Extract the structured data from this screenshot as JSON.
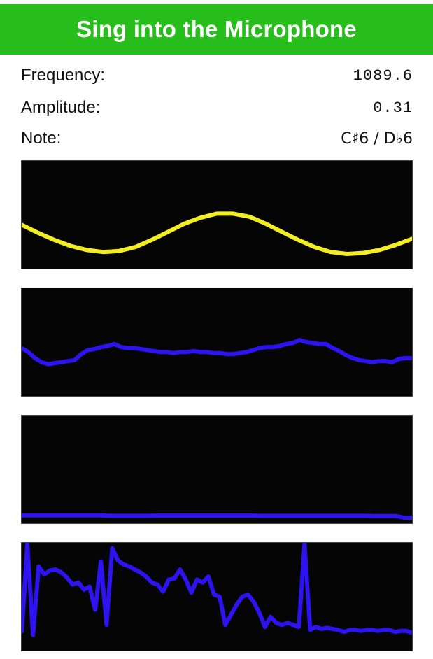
{
  "header": {
    "title": "Sing into the Microphone",
    "color": "#27bd1a"
  },
  "readouts": {
    "frequency_label": "Frequency:",
    "frequency_value": "1089.6",
    "amplitude_label": "Amplitude:",
    "amplitude_value": "0.31",
    "note_label": "Note:",
    "note_value": "C♯6 / D♭6"
  },
  "plots": [
    {
      "name": "waveform-plot",
      "color": "#f2ee22",
      "points": [
        0.38,
        0.3,
        0.23,
        0.17,
        0.13,
        0.11,
        0.12,
        0.16,
        0.23,
        0.31,
        0.39,
        0.45,
        0.49,
        0.49,
        0.46,
        0.39,
        0.31,
        0.23,
        0.16,
        0.11,
        0.09,
        0.1,
        0.13,
        0.18,
        0.24
      ]
    },
    {
      "name": "spectrum-plot-1",
      "color": "#2c13f0",
      "points": [
        0.42,
        0.38,
        0.32,
        0.28,
        0.26,
        0.27,
        0.28,
        0.29,
        0.3,
        0.36,
        0.4,
        0.41,
        0.43,
        0.44,
        0.46,
        0.43,
        0.42,
        0.42,
        0.41,
        0.4,
        0.39,
        0.38,
        0.38,
        0.37,
        0.38,
        0.38,
        0.39,
        0.38,
        0.38,
        0.37,
        0.37,
        0.36,
        0.36,
        0.37,
        0.38,
        0.4,
        0.42,
        0.43,
        0.43,
        0.44,
        0.46,
        0.47,
        0.5,
        0.48,
        0.47,
        0.46,
        0.46,
        0.42,
        0.39,
        0.35,
        0.32,
        0.3,
        0.29,
        0.28,
        0.29,
        0.29,
        0.28,
        0.31,
        0.32,
        0.32
      ]
    },
    {
      "name": "spectrum-plot-2",
      "color": "#2c13f0",
      "points": [
        0.022,
        0.022,
        0.022,
        0.022,
        0.022,
        0.022,
        0.022,
        0.022,
        0.022,
        0.022,
        0.022,
        0.018,
        0.018,
        0.018,
        0.018,
        0.018,
        0.018,
        0.02,
        0.02,
        0.02,
        0.02,
        0.02,
        0.02,
        0.02,
        0.02,
        0.02,
        0.02,
        0.02,
        0.02,
        0.02,
        0.018,
        0.018,
        0.018,
        0.018,
        0.018,
        0.018,
        0.018,
        0.018,
        0.018,
        0.018,
        0.018,
        0.018,
        0.018,
        0.018,
        0.015,
        0.015,
        0.015,
        0.015,
        0.0,
        0.0
      ]
    },
    {
      "name": "spectrum-plot-3",
      "color": "#2c13f0",
      "points": [
        0.12,
        1.0,
        0.1,
        0.78,
        0.7,
        0.74,
        0.75,
        0.72,
        0.67,
        0.6,
        0.62,
        0.55,
        0.58,
        0.35,
        0.83,
        0.2,
        0.96,
        0.84,
        0.8,
        0.78,
        0.75,
        0.72,
        0.68,
        0.62,
        0.6,
        0.53,
        0.65,
        0.66,
        0.75,
        0.65,
        0.52,
        0.65,
        0.62,
        0.68,
        0.5,
        0.48,
        0.2,
        0.3,
        0.4,
        0.48,
        0.5,
        0.43,
        0.32,
        0.18,
        0.28,
        0.22,
        0.2,
        0.22,
        0.2,
        0.18,
        1.0,
        0.15,
        0.18,
        0.16,
        0.17,
        0.16,
        0.15,
        0.13,
        0.15,
        0.15,
        0.14,
        0.15,
        0.15,
        0.14,
        0.15,
        0.15,
        0.13,
        0.14,
        0.14,
        0.12
      ]
    }
  ]
}
